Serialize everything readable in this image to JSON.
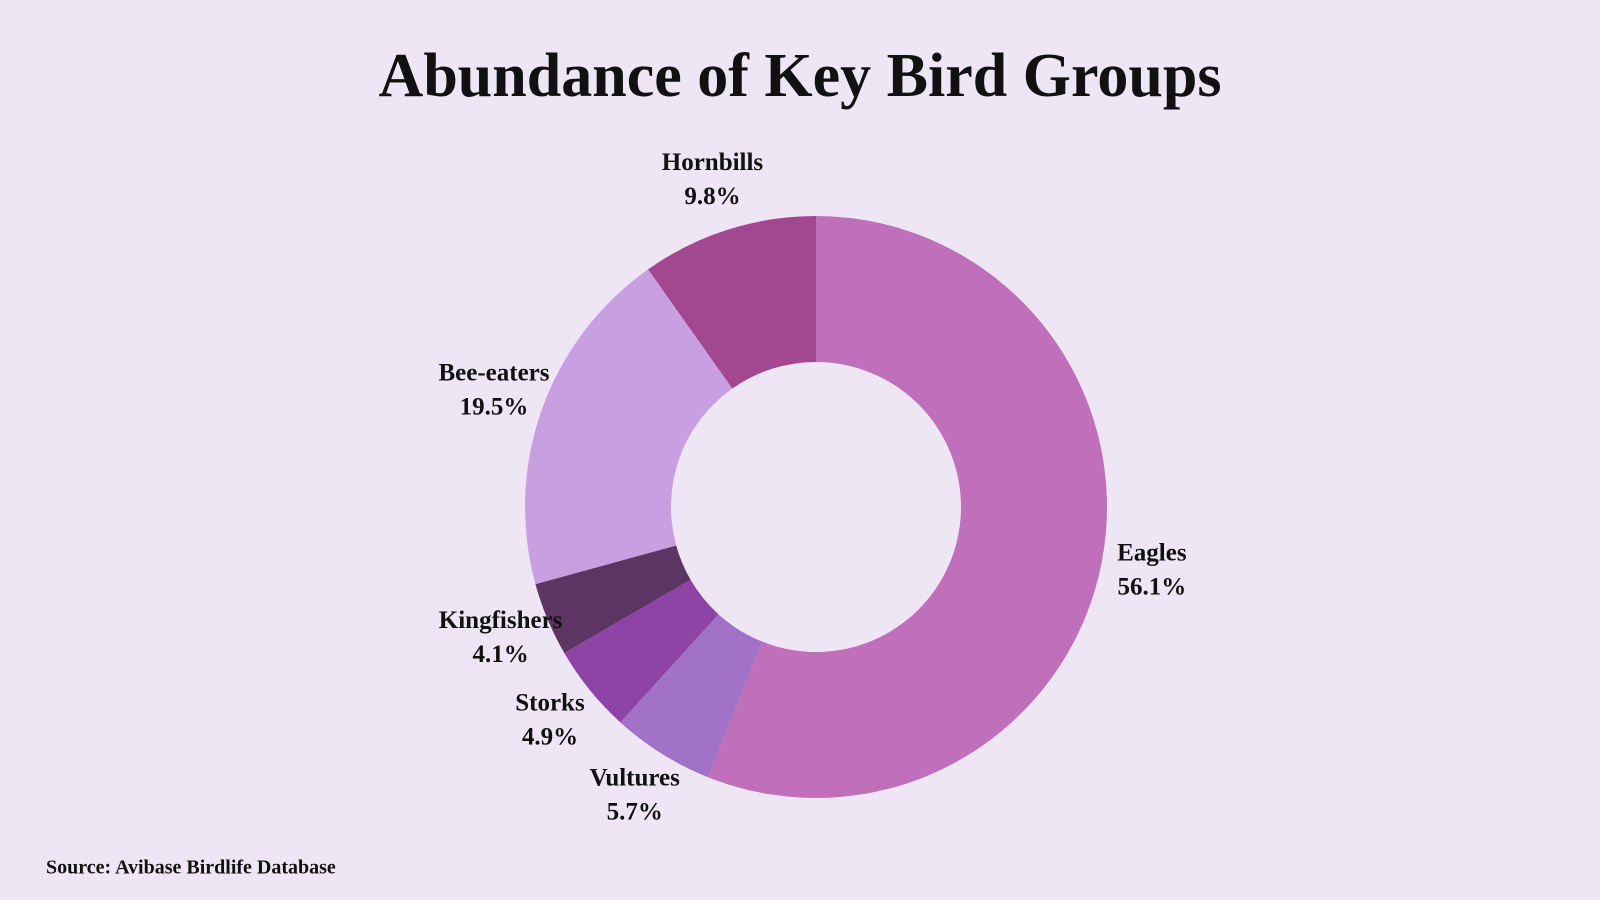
{
  "chart_data": {
    "type": "donut",
    "title": "Abundance of Key Bird Groups",
    "categories": [
      "Eagles",
      "Vultures",
      "Storks",
      "Kingfishers",
      "Bee-eaters",
      "Hornbills"
    ],
    "values": [
      56.1,
      5.7,
      4.9,
      4.1,
      19.5,
      9.8
    ],
    "value_labels": [
      "56.1%",
      "5.7%",
      "4.9%",
      "4.1%",
      "19.5%",
      "9.8%"
    ],
    "colors": [
      "#c06fbb",
      "#a272c8",
      "#8e44a6",
      "#5c3563",
      "#c8a0e2",
      "#a34790"
    ],
    "source": "Source: Avibase Birdlife Database"
  }
}
